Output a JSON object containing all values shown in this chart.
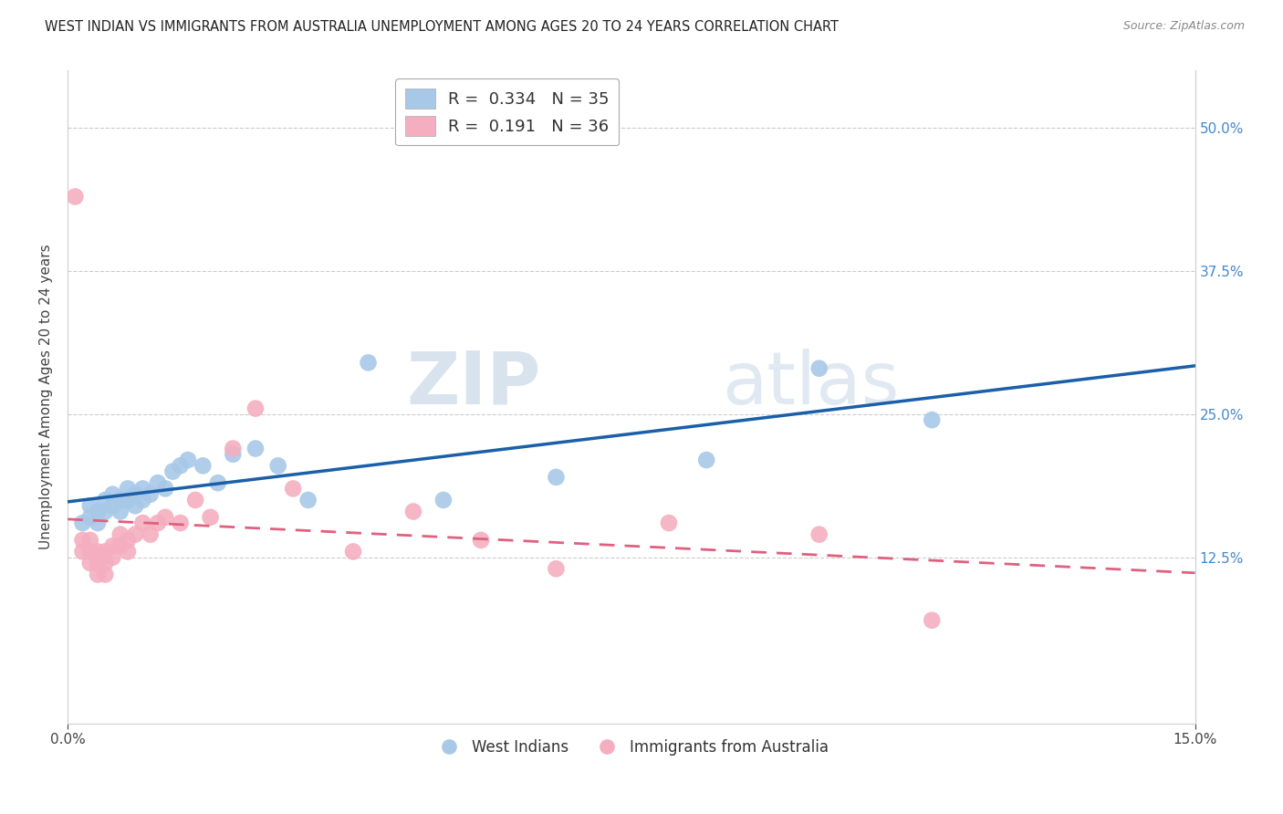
{
  "title": "WEST INDIAN VS IMMIGRANTS FROM AUSTRALIA UNEMPLOYMENT AMONG AGES 20 TO 24 YEARS CORRELATION CHART",
  "source": "Source: ZipAtlas.com",
  "ylabel": "Unemployment Among Ages 20 to 24 years",
  "xlim": [
    0.0,
    0.15
  ],
  "ylim": [
    -0.02,
    0.55
  ],
  "x_ticks": [
    0.0,
    0.15
  ],
  "x_tick_labels": [
    "0.0%",
    "15.0%"
  ],
  "y_tick_positions": [
    0.125,
    0.25,
    0.375,
    0.5
  ],
  "y_tick_labels": [
    "12.5%",
    "25.0%",
    "37.5%",
    "50.0%"
  ],
  "legend1_label": "R =  0.334   N = 35",
  "legend2_label": "R =  0.191   N = 36",
  "legend_bottom1": "West Indians",
  "legend_bottom2": "Immigrants from Australia",
  "blue_color": "#a8c8e8",
  "pink_color": "#f4aec0",
  "blue_line_color": "#1a5fa8",
  "pink_line_color": "#e06080",
  "watermark_zip": "ZIP",
  "watermark_atlas": "atlas",
  "blue_scatter_x": [
    0.002,
    0.003,
    0.003,
    0.004,
    0.004,
    0.005,
    0.005,
    0.006,
    0.006,
    0.007,
    0.007,
    0.008,
    0.008,
    0.009,
    0.009,
    0.01,
    0.01,
    0.011,
    0.012,
    0.013,
    0.014,
    0.015,
    0.016,
    0.018,
    0.02,
    0.022,
    0.025,
    0.028,
    0.032,
    0.04,
    0.05,
    0.065,
    0.085,
    0.1,
    0.115
  ],
  "blue_scatter_y": [
    0.155,
    0.16,
    0.17,
    0.155,
    0.165,
    0.165,
    0.175,
    0.17,
    0.18,
    0.165,
    0.175,
    0.175,
    0.185,
    0.17,
    0.18,
    0.175,
    0.185,
    0.18,
    0.19,
    0.185,
    0.2,
    0.205,
    0.21,
    0.205,
    0.19,
    0.215,
    0.22,
    0.205,
    0.175,
    0.295,
    0.175,
    0.195,
    0.21,
    0.29,
    0.245
  ],
  "pink_scatter_x": [
    0.001,
    0.002,
    0.002,
    0.003,
    0.003,
    0.003,
    0.004,
    0.004,
    0.004,
    0.005,
    0.005,
    0.005,
    0.006,
    0.006,
    0.007,
    0.007,
    0.008,
    0.008,
    0.009,
    0.01,
    0.011,
    0.012,
    0.013,
    0.015,
    0.017,
    0.019,
    0.022,
    0.025,
    0.03,
    0.038,
    0.046,
    0.055,
    0.065,
    0.08,
    0.1,
    0.115
  ],
  "pink_scatter_y": [
    0.44,
    0.13,
    0.14,
    0.12,
    0.13,
    0.14,
    0.11,
    0.12,
    0.13,
    0.11,
    0.12,
    0.13,
    0.125,
    0.135,
    0.135,
    0.145,
    0.13,
    0.14,
    0.145,
    0.155,
    0.145,
    0.155,
    0.16,
    0.155,
    0.175,
    0.16,
    0.22,
    0.255,
    0.185,
    0.13,
    0.165,
    0.14,
    0.115,
    0.155,
    0.145,
    0.07
  ],
  "title_fontsize": 10.5,
  "source_fontsize": 9,
  "tick_fontsize": 11,
  "label_fontsize": 11
}
